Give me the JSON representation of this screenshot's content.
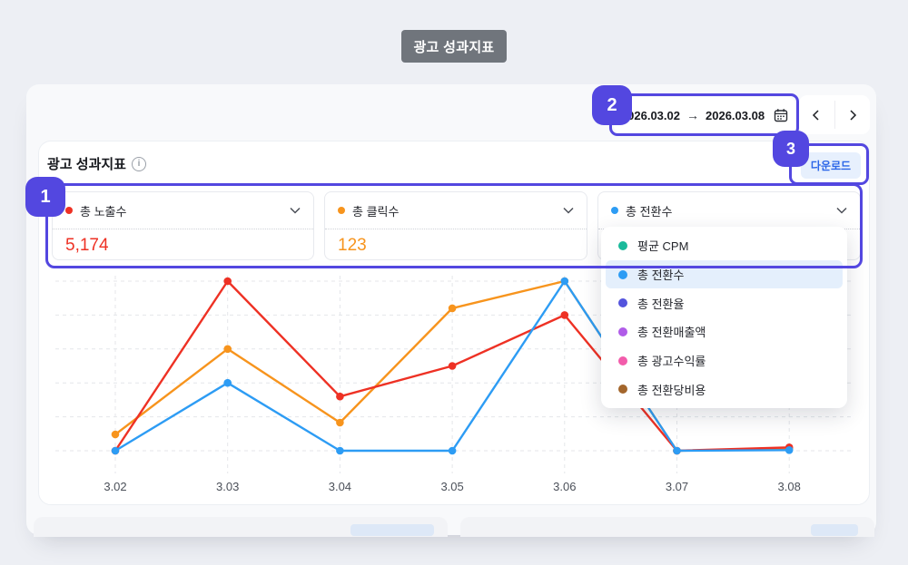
{
  "page": {
    "title_badge": "광고 성과지표"
  },
  "toolbar": {
    "date_start": "2026.03.02",
    "date_arrow": "→",
    "date_end": "2026.03.08"
  },
  "panel": {
    "title": "광고 성과지표",
    "info_glyph": "i",
    "download_label": "다운로드"
  },
  "metrics": [
    {
      "label": "총 노출수",
      "value": "5,174",
      "color": "#ee3124"
    },
    {
      "label": "총 클릭수",
      "value": "123",
      "color": "#f7941d"
    },
    {
      "label": "총 전환수",
      "value": "",
      "color": "#2d9cf4"
    }
  ],
  "dropdown": {
    "items": [
      {
        "label": "평균 CPM",
        "color": "#1aba9b",
        "selected": false
      },
      {
        "label": "총 전환수",
        "color": "#2d9cf4",
        "selected": true
      },
      {
        "label": "총 전환율",
        "color": "#5454dd",
        "selected": false
      },
      {
        "label": "총 전환매출액",
        "color": "#b05ce8",
        "selected": false
      },
      {
        "label": "총 광고수익률",
        "color": "#f25cab",
        "selected": false
      },
      {
        "label": "총 전환당비용",
        "color": "#a3662c",
        "selected": false
      }
    ]
  },
  "annotations": [
    {
      "n": "1"
    },
    {
      "n": "2"
    },
    {
      "n": "3"
    }
  ],
  "chart_data": {
    "type": "line",
    "x": [
      "3.02",
      "3.03",
      "3.04",
      "3.05",
      "3.06",
      "3.07",
      "3.08"
    ],
    "series": [
      {
        "name": "총 노출수",
        "color": "#ee3124",
        "values": [
          0,
          5,
          1.6,
          2.5,
          4,
          0,
          0.1
        ]
      },
      {
        "name": "총 클릭수",
        "color": "#f7941d",
        "values": [
          0.48,
          3,
          0.83,
          4.2,
          5,
          0,
          0.05
        ]
      },
      {
        "name": "총 전환수",
        "color": "#2d9cf4",
        "values": [
          0,
          2,
          0,
          0,
          5,
          0,
          0.02
        ]
      }
    ],
    "ylim": [
      0,
      5
    ],
    "ylabel": "",
    "xlabel": "",
    "grid": true,
    "legend": "none",
    "note": "No y-axis labels shown; values are in horizontal-gridline units, each series normalized to its own scale. Totals: 노출수 5,174 / 클릭수 123."
  }
}
